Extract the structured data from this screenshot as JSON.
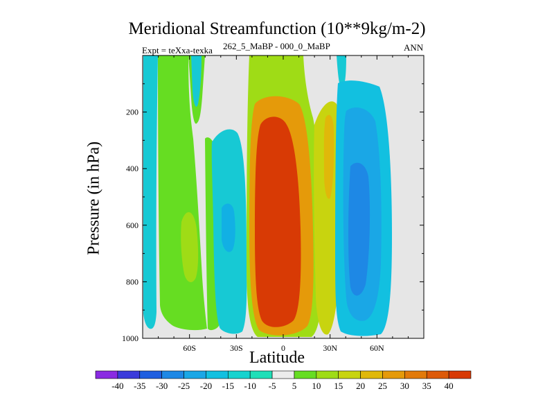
{
  "chart_data": {
    "type": "contour",
    "title": "Meridional Streamfunction (10**9kg/m-2)",
    "subtitle": "262_5_MaBP - 000_0_MaBP",
    "experiment": "Expt = teXxa-texka",
    "season": "ANN",
    "xlabel": "Latitude",
    "ylabel": "Pressure (in hPa)",
    "xlim": [
      -90,
      90
    ],
    "ylim": [
      1000,
      0
    ],
    "x_ticks": [
      -60,
      -30,
      0,
      30,
      60
    ],
    "x_tick_labels": [
      "60S",
      "30S",
      "0",
      "30N",
      "60N"
    ],
    "y_ticks": [
      200,
      400,
      600,
      800,
      1000
    ],
    "y_tick_labels": [
      "200",
      "400",
      "600",
      "800",
      "1000"
    ],
    "background_color": "#e6e6e6",
    "colorbar": {
      "levels": [
        -40,
        -35,
        -30,
        -25,
        -20,
        -15,
        -10,
        -5,
        5,
        10,
        15,
        20,
        25,
        30,
        35,
        40
      ],
      "labels": [
        "-40",
        "-35",
        "-30",
        "-25",
        "-20",
        "-15",
        "-10",
        "-5",
        "5",
        "10",
        "15",
        "20",
        "25",
        "30",
        "35",
        "40"
      ],
      "colors": [
        "#8a2be2",
        "#3b3bdb",
        "#1f5fe0",
        "#1e88e5",
        "#1aa7e6",
        "#12c0e0",
        "#17d3cf",
        "#20dfb8",
        "#ececec",
        "#66dd22",
        "#9fdc16",
        "#c8d40f",
        "#e0b80a",
        "#e59a0a",
        "#e27a0a",
        "#dd5a09",
        "#d83a05"
      ]
    },
    "regions": [
      {
        "name": "sh-polar-negative-cell",
        "value": -15,
        "lat": [
          -88,
          -76
        ],
        "p": [
          15,
          950
        ]
      },
      {
        "name": "sh-polar-positive-band",
        "value": 10,
        "lat": [
          -76,
          -58
        ],
        "p": [
          15,
          1000
        ]
      },
      {
        "name": "sh-polar-positive-core",
        "value": 15,
        "lat": [
          -67,
          -58
        ],
        "p": [
          560,
          800
        ]
      },
      {
        "name": "sh-upper-negative-strip",
        "value": -10,
        "lat": [
          -61,
          -58
        ],
        "p": [
          15,
          80
        ]
      },
      {
        "name": "sh-midlat-negative-cell",
        "value": -10,
        "lat": [
          -42,
          -23
        ],
        "p": [
          240,
          980
        ]
      },
      {
        "name": "sh-midlat-negative-core",
        "value": -15,
        "lat": [
          -40,
          -30
        ],
        "p": [
          440,
          620
        ]
      },
      {
        "name": "sh-subtropical-positive-band",
        "value": 10,
        "lat": [
          -55,
          -42
        ],
        "p": [
          300,
          1000
        ]
      },
      {
        "name": "tropical-hadley-cell",
        "value": 40,
        "lat": [
          -12,
          8
        ],
        "p": [
          200,
          950
        ]
      },
      {
        "name": "tropical-hadley-envelope",
        "value": 25,
        "lat": [
          -18,
          16
        ],
        "p": [
          110,
          990
        ]
      },
      {
        "name": "nh-subtropical-positive-cell",
        "value": 20,
        "lat": [
          15,
          30
        ],
        "p": [
          150,
          940
        ]
      },
      {
        "name": "nh-midlat-negative-cell",
        "value": -20,
        "lat": [
          33,
          68
        ],
        "p": [
          110,
          990
        ]
      },
      {
        "name": "nh-midlat-negative-core",
        "value": -30,
        "lat": [
          40,
          52
        ],
        "p": [
          330,
          840
        ]
      },
      {
        "name": "nh-upper-negative-strip",
        "value": -10,
        "lat": [
          37,
          42
        ],
        "p": [
          15,
          120
        ]
      }
    ]
  }
}
